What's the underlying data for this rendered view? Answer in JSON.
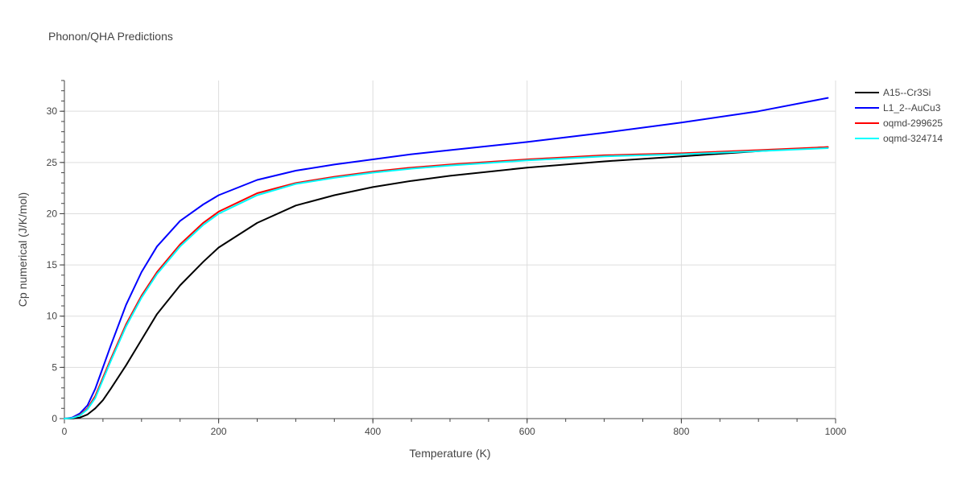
{
  "chart_data": {
    "type": "line",
    "title": "Phonon/QHA Predictions",
    "xlabel": "Temperature (K)",
    "ylabel": "Cp numerical (J/K/mol)",
    "xlim": [
      0,
      1000
    ],
    "ylim": [
      0,
      33
    ],
    "xticks": [
      0,
      200,
      400,
      600,
      800,
      1000
    ],
    "yticks": [
      0,
      5,
      10,
      15,
      20,
      25,
      30
    ],
    "grid": true,
    "legend_position": "top-right",
    "series": [
      {
        "name": "A15--Cr3Si",
        "color": "#000000",
        "x": [
          0,
          10,
          20,
          30,
          40,
          50,
          60,
          80,
          100,
          120,
          150,
          180,
          200,
          250,
          300,
          350,
          400,
          450,
          500,
          600,
          700,
          800,
          900,
          990
        ],
        "y": [
          0,
          0,
          0.1,
          0.4,
          1.0,
          1.8,
          2.9,
          5.2,
          7.7,
          10.2,
          13.0,
          15.3,
          16.7,
          19.1,
          20.8,
          21.8,
          22.6,
          23.2,
          23.7,
          24.5,
          25.1,
          25.6,
          26.1,
          26.5
        ]
      },
      {
        "name": "L1_2--AuCu3",
        "color": "#0000ff",
        "x": [
          0,
          10,
          20,
          30,
          40,
          50,
          60,
          80,
          100,
          120,
          150,
          180,
          200,
          250,
          300,
          350,
          400,
          450,
          500,
          600,
          700,
          800,
          900,
          990
        ],
        "y": [
          0,
          0.1,
          0.5,
          1.3,
          2.9,
          5.0,
          7.1,
          11.1,
          14.3,
          16.8,
          19.3,
          20.9,
          21.8,
          23.3,
          24.2,
          24.8,
          25.3,
          25.8,
          26.2,
          27.0,
          27.9,
          28.9,
          30.0,
          31.3
        ]
      },
      {
        "name": "oqmd-299625",
        "color": "#ff0000",
        "x": [
          0,
          10,
          20,
          30,
          40,
          50,
          60,
          80,
          100,
          120,
          150,
          180,
          200,
          250,
          300,
          350,
          400,
          450,
          500,
          600,
          700,
          800,
          900,
          990
        ],
        "y": [
          0,
          0.05,
          0.35,
          1.0,
          2.2,
          4.0,
          5.8,
          9.2,
          12.0,
          14.3,
          17.0,
          19.1,
          20.2,
          22.0,
          23.0,
          23.6,
          24.1,
          24.5,
          24.8,
          25.3,
          25.7,
          25.9,
          26.2,
          26.5
        ]
      },
      {
        "name": "oqmd-324714",
        "color": "#00ffff",
        "x": [
          0,
          10,
          20,
          30,
          40,
          50,
          60,
          80,
          100,
          120,
          150,
          180,
          200,
          250,
          300,
          350,
          400,
          450,
          500,
          600,
          700,
          800,
          900,
          990
        ],
        "y": [
          0,
          0.05,
          0.3,
          0.9,
          2.0,
          3.8,
          5.6,
          9.0,
          11.8,
          14.1,
          16.8,
          18.9,
          20.0,
          21.8,
          22.9,
          23.5,
          24.0,
          24.4,
          24.7,
          25.2,
          25.6,
          25.8,
          26.1,
          26.4
        ]
      }
    ]
  }
}
